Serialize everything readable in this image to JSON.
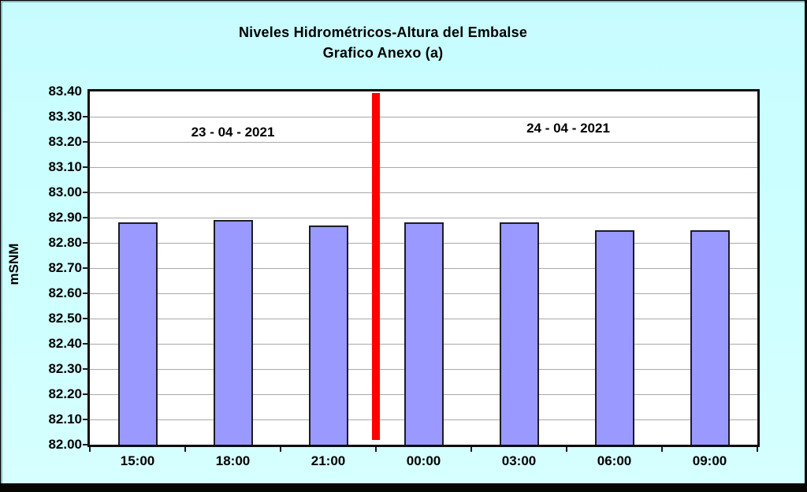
{
  "title": {
    "line1": "Niveles Hidrométricos-Altura del Embalse",
    "line2": "Grafico Anexo (a)"
  },
  "y_axis": {
    "label": "mSNM"
  },
  "period_labels": {
    "left": "23 - 04 - 2021",
    "right": "24 - 04 - 2021"
  },
  "colors": {
    "background": "#ccffff",
    "plot_background": "#ffffff",
    "bar_fill": "#9999ff",
    "bar_border": "#1c1c28",
    "gridline": "#a9a9a9",
    "divider": "#ff0000",
    "frame": "#060606",
    "text": "#000000"
  },
  "chart_data": {
    "type": "bar",
    "categories": [
      "15:00",
      "18:00",
      "21:00",
      "00:00",
      "03:00",
      "06:00",
      "09:00"
    ],
    "values": [
      82.88,
      82.89,
      82.87,
      82.88,
      82.88,
      82.85,
      82.85
    ],
    "title": "Niveles Hidrométricos-Altura del Embalse",
    "subtitle": "Grafico Anexo (a)",
    "xlabel": "",
    "ylabel": "mSNM",
    "ylim": [
      82.0,
      83.4
    ],
    "ytick_step": 0.1,
    "ytick_format": "2dp",
    "grid": true,
    "legend": false,
    "divider_after_index": 2,
    "annotations": [
      {
        "text": "23 - 04 - 2021",
        "position": "left-half"
      },
      {
        "text": "24 - 04 - 2021",
        "position": "right-half"
      }
    ]
  }
}
